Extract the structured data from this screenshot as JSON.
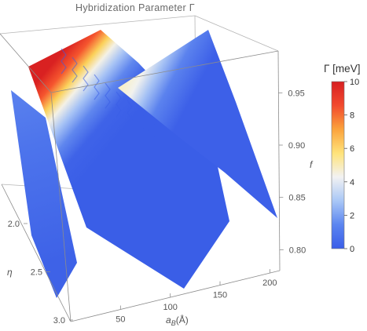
{
  "chart_data": {
    "type": "surface3d",
    "title": "Hybridization  Parameter Γ",
    "x_axis": {
      "label_main": "a",
      "label_sub": "B",
      "label_unit": "(Å)",
      "ticks": [
        50,
        100,
        150,
        200
      ],
      "range": [
        0,
        210
      ]
    },
    "y_axis": {
      "label": "η",
      "ticks": [
        "2.0",
        "2.5",
        "3.0"
      ],
      "range": [
        2.0,
        3.0
      ]
    },
    "z_axis": {
      "label": "f",
      "ticks": [
        "0.80",
        "0.85",
        "0.90",
        "0.95"
      ],
      "range": [
        0.78,
        0.99
      ]
    },
    "colorbar": {
      "title": "Γ [meV]",
      "ticks": [
        0,
        2,
        4,
        6,
        8,
        10
      ],
      "range": [
        0,
        10
      ],
      "colors": [
        "#3a5de8",
        "#5b85f0",
        "#a9c7f6",
        "#f2f2f2",
        "#ffe37a",
        "#fba33c",
        "#f24a2e",
        "#d71f22"
      ]
    },
    "surfaces": [
      {
        "name": "",
        "peak_gamma": 10,
        "typical_gamma": 0.5
      },
      {
        "name": "",
        "peak_gamma": 5,
        "typical_gamma": 0.5
      }
    ]
  }
}
